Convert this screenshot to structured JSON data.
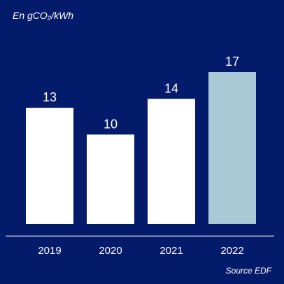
{
  "unit_label": "En gCO₂/kWh",
  "source": "Source EDF",
  "colors": {
    "background": "#041a6b",
    "bar_default": "#ffffff",
    "bar_highlight": "#a9c9d6",
    "axis_line": "#c9cde0"
  },
  "chart_data": {
    "type": "bar",
    "categories": [
      "2019",
      "2020",
      "2021",
      "2022"
    ],
    "values": [
      13,
      10,
      14,
      17
    ],
    "highlight": [
      "2022"
    ],
    "title": "",
    "xlabel": "",
    "ylabel": "En gCO₂/kWh",
    "ylim": [
      0,
      17
    ],
    "grid": false,
    "legend": "none"
  }
}
